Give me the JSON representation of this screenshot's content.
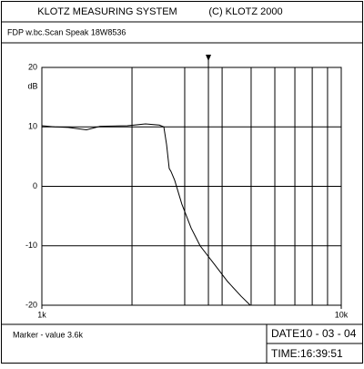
{
  "header": {
    "title": "KLOTZ MEASURING SYSTEM",
    "copyright": "(C) KLOTZ 2000",
    "subtitle": "FDP w.bc.Scan Speak 18W8536"
  },
  "chart_data": {
    "type": "line",
    "y_label": "dB",
    "log_x": true,
    "grid": true,
    "xlim": [
      1000,
      10000
    ],
    "ylim": [
      -20,
      20
    ],
    "xticks": [
      {
        "value": 1000,
        "label": "1k"
      },
      {
        "value": 10000,
        "label": "10k"
      }
    ],
    "xminor": [
      2000,
      3000,
      4000,
      5000,
      6000,
      7000,
      8000,
      9000
    ],
    "yticks": [
      -20,
      -10,
      0,
      10,
      20
    ],
    "x": [
      1000,
      1103,
      1225,
      1409,
      1564,
      1930,
      2219,
      2467,
      2555,
      2610,
      2663,
      2700,
      2778,
      2935,
      3151,
      3377,
      3754,
      4170,
      4631,
      4967
    ],
    "series": [
      {
        "color": "#000000",
        "values": [
          10.2,
          10,
          9.9,
          9.5,
          10.1,
          10.2,
          10.5,
          10.3,
          10,
          7,
          3,
          2.5,
          1,
          -3,
          -7,
          -10,
          -13,
          -16,
          -18.5,
          -20
        ]
      }
    ],
    "marker": {
      "value": 3600,
      "label": "Marker - value 3.6k"
    }
  },
  "footer": {
    "date_label": "DATE:",
    "date": "10 - 03 - 04",
    "time_label": "TIME:",
    "time": "16:39:51"
  }
}
